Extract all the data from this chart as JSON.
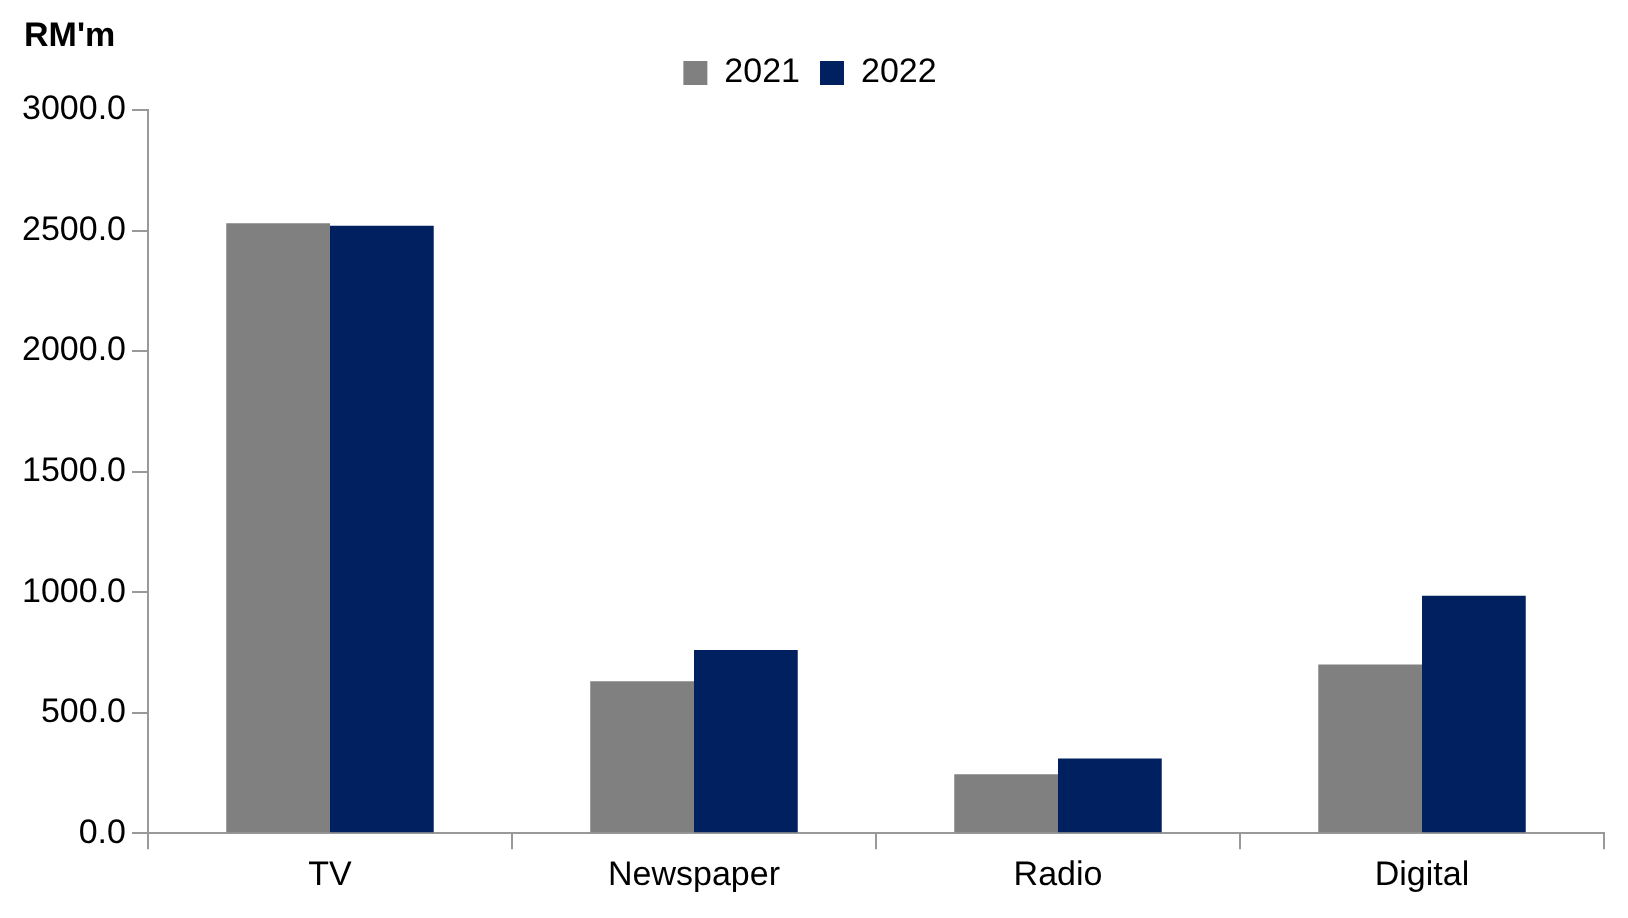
{
  "chart_data": {
    "type": "bar",
    "ylabel": "RM'm",
    "categories": [
      "TV",
      "Newspaper",
      "Radio",
      "Digital"
    ],
    "series": [
      {
        "name": "2021",
        "color": "#808080",
        "values": [
          2530,
          630,
          245,
          700
        ]
      },
      {
        "name": "2022",
        "color": "#002060",
        "values": [
          2520,
          760,
          310,
          985
        ]
      }
    ],
    "ylim": [
      0,
      3000
    ],
    "yticks": [
      {
        "value": 0,
        "label": "0.0"
      },
      {
        "value": 500,
        "label": "500.0"
      },
      {
        "value": 1000,
        "label": "1000.0"
      },
      {
        "value": 1500,
        "label": "1500.0"
      },
      {
        "value": 2000,
        "label": "2000.0"
      },
      {
        "value": 2500,
        "label": "2500.0"
      },
      {
        "value": 3000,
        "label": "3000.0"
      }
    ],
    "grid": false,
    "legend": "top"
  }
}
